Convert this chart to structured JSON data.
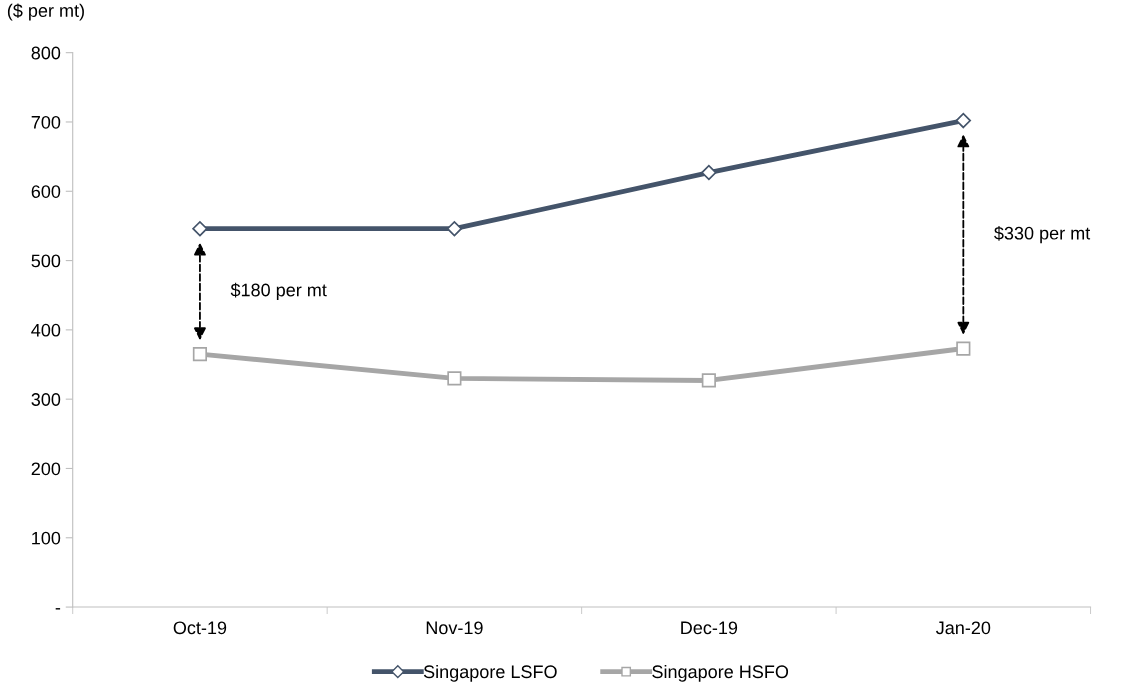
{
  "chart_data": {
    "type": "line",
    "ylabel": "($ per mt)",
    "categories": [
      "Oct-19",
      "Nov-19",
      "Dec-19",
      "Jan-20"
    ],
    "series": [
      {
        "name": "Singapore LSFO",
        "color": "#44546a",
        "marker": "diamond",
        "values": [
          546,
          546,
          627,
          702
        ]
      },
      {
        "name": "Singapore HSFO",
        "color": "#a6a6a6",
        "marker": "square",
        "values": [
          365,
          330,
          327,
          373
        ]
      }
    ],
    "ylim": [
      0,
      800
    ],
    "yticks": [
      {
        "value": 0,
        "label": "-"
      },
      100,
      200,
      300,
      400,
      500,
      600,
      700,
      800
    ],
    "annotations": [
      "$180 per mt",
      "$330 per mt"
    ],
    "grid": false,
    "legend": "bottom",
    "line_style": "solid"
  }
}
